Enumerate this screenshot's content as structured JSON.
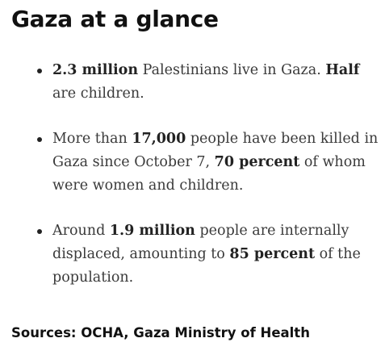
{
  "title": "Gaza at a glance",
  "facts": [
    {
      "parts": [
        {
          "text": "2.3 million",
          "bold": true
        },
        {
          "text": " Palestinians live in Gaza. ",
          "bold": false
        },
        {
          "text": "Half",
          "bold": true
        },
        {
          "text": " are children.",
          "bold": false
        }
      ]
    },
    {
      "parts": [
        {
          "text": "More than ",
          "bold": false
        },
        {
          "text": "17,000",
          "bold": true
        },
        {
          "text": " people have been killed in Gaza since October 7, ",
          "bold": false
        },
        {
          "text": "70 percent",
          "bold": true
        },
        {
          "text": " of whom were women and children.",
          "bold": false
        }
      ]
    },
    {
      "parts": [
        {
          "text": "Around ",
          "bold": false
        },
        {
          "text": "1.9 million",
          "bold": true
        },
        {
          "text": " people are internally displaced, amounting to ",
          "bold": false
        },
        {
          "text": "85 percent",
          "bold": true
        },
        {
          "text": " of the population.",
          "bold": false
        }
      ]
    }
  ],
  "sources": "Sources: OCHA, Gaza Ministry of Health"
}
